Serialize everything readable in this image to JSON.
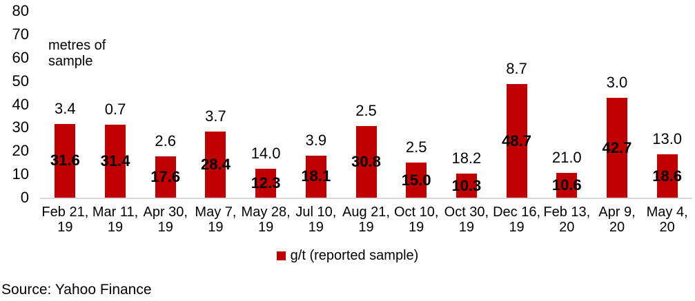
{
  "chart_data": {
    "type": "bar",
    "bar_color": "#C00000",
    "axis_line_color": "#D9D9D9",
    "grid": false,
    "annotation": {
      "line1": "metres of",
      "line2": "sample"
    },
    "y_axis": {
      "min": 0,
      "max": 80,
      "step": 10,
      "ticks": [
        "0",
        "10",
        "20",
        "30",
        "40",
        "50",
        "60",
        "70",
        "80"
      ]
    },
    "categories": [
      {
        "line1": "Feb 21,",
        "line2": "19"
      },
      {
        "line1": "Mar 11,",
        "line2": "19"
      },
      {
        "line1": "Apr 30,",
        "line2": "19"
      },
      {
        "line1": "May 7,",
        "line2": "19"
      },
      {
        "line1": "May 28,",
        "line2": "19"
      },
      {
        "line1": "Jul 10,",
        "line2": "19"
      },
      {
        "line1": "Aug 21,",
        "line2": "19"
      },
      {
        "line1": "Oct 10,",
        "line2": "19"
      },
      {
        "line1": "Oct 30,",
        "line2": "19"
      },
      {
        "line1": "Dec 16,",
        "line2": "19"
      },
      {
        "line1": "Feb 13,",
        "line2": "20"
      },
      {
        "line1": "Apr 9,",
        "line2": "20"
      },
      {
        "line1": "May 4,",
        "line2": "20"
      }
    ],
    "series": [
      {
        "name": "g/t (reported sample)",
        "label_position": "inside-center",
        "values": [
          31.6,
          31.4,
          17.6,
          28.4,
          12.3,
          18.1,
          30.8,
          15.0,
          10.3,
          48.7,
          10.6,
          42.7,
          18.6
        ]
      },
      {
        "name": "metres of sample",
        "label_position": "above-bar",
        "values": [
          3.4,
          0.7,
          2.6,
          3.7,
          14.0,
          3.9,
          2.5,
          2.5,
          18.2,
          8.7,
          21.0,
          3.0,
          13.0
        ]
      }
    ],
    "legend": {
      "label": "g/t (reported sample)",
      "position": "bottom"
    }
  },
  "source": {
    "text": "Source: Yahoo Finance"
  }
}
